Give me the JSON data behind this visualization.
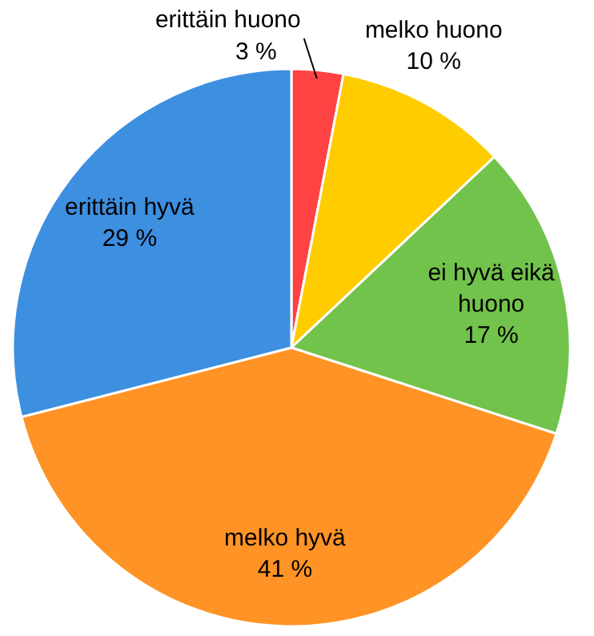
{
  "chart_data": {
    "type": "pie",
    "categories": [
      "erittäin huono",
      "melko huono",
      "ei hyvä eikä huono",
      "melko hyvä",
      "erittäin hyvä"
    ],
    "values": [
      3,
      10,
      17,
      41,
      29
    ],
    "value_labels": [
      "3 %",
      "10 %",
      "17 %",
      "41 %",
      "29 %"
    ],
    "colors": [
      "#ff4343",
      "#ffcc00",
      "#72c34b",
      "#ff9326",
      "#3d8fe0"
    ]
  }
}
